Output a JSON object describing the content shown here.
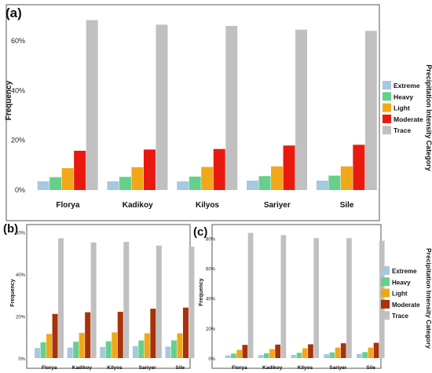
{
  "colors": {
    "Extreme": "#a6c8e0",
    "Heavy": "#66d08a",
    "Light": "#f0a818",
    "Moderate_a": "#e81a10",
    "Moderate_bc": "#a8320a",
    "Trace": "#c0c0c0"
  },
  "chart_data": [
    {
      "panel": "(a)",
      "type": "bar",
      "categories": [
        "Florya",
        "Kadikoy",
        "Kilyos",
        "Sariyer",
        "Sile"
      ],
      "ylabel": "Frequency",
      "ylim": [
        0,
        72
      ],
      "yticks": [
        "0%",
        "20%",
        "40%",
        "60%"
      ],
      "ytick_values": [
        0,
        20,
        40,
        60
      ],
      "legend_title": "Precipitation Intensity Category",
      "legend_position": "right",
      "series": [
        {
          "name": "Extreme",
          "values": [
            3.5,
            3.5,
            3.5,
            3.8,
            3.8
          ]
        },
        {
          "name": "Heavy",
          "values": [
            5.2,
            5.3,
            5.4,
            5.6,
            5.8
          ]
        },
        {
          "name": "Light",
          "values": [
            8.8,
            9.2,
            9.3,
            9.5,
            9.5
          ]
        },
        {
          "name": "Moderate",
          "values": [
            15.8,
            16.3,
            16.5,
            17.9,
            18.2
          ]
        },
        {
          "name": "Trace",
          "values": [
            68.3,
            66.5,
            66.0,
            64.5,
            64.0
          ]
        }
      ]
    },
    {
      "panel": "(b)",
      "type": "bar",
      "categories": [
        "Florya",
        "Kadikoy",
        "Kilyos",
        "Sariyer",
        "Sile"
      ],
      "ylabel": "Frequency",
      "ylim": [
        0,
        62
      ],
      "yticks": [
        "0%",
        "20%",
        "40%",
        "60%"
      ],
      "ytick_values": [
        0,
        20,
        40,
        60
      ],
      "series": [
        {
          "name": "Extreme",
          "values": [
            4.8,
            5.0,
            5.3,
            5.7,
            5.5
          ]
        },
        {
          "name": "Heavy",
          "values": [
            7.5,
            7.8,
            8.0,
            8.4,
            8.4
          ]
        },
        {
          "name": "Light",
          "values": [
            11.5,
            12.0,
            12.2,
            11.8,
            11.8
          ]
        },
        {
          "name": "Moderate",
          "values": [
            21.0,
            21.8,
            22.0,
            23.5,
            24.0
          ]
        },
        {
          "name": "Trace",
          "values": [
            57.0,
            55.0,
            55.3,
            53.5,
            53.0
          ]
        }
      ]
    },
    {
      "panel": "(c)",
      "type": "bar",
      "categories": [
        "Florya",
        "Kadikoy",
        "Kilyos",
        "Sariyer",
        "Sile"
      ],
      "ylabel": "Frequency",
      "ylim": [
        0,
        88
      ],
      "yticks": [
        "0%",
        "20%",
        "40%",
        "60%",
        "80%"
      ],
      "ytick_values": [
        0,
        20,
        40,
        60,
        80
      ],
      "legend_title": "Precipitation Intensity Category",
      "legend_position": "right",
      "series": [
        {
          "name": "Extreme",
          "values": [
            1.8,
            2.0,
            2.2,
            2.5,
            2.8
          ]
        },
        {
          "name": "Heavy",
          "values": [
            3.0,
            3.2,
            3.5,
            3.8,
            4.0
          ]
        },
        {
          "name": "Light",
          "values": [
            5.5,
            6.0,
            6.5,
            7.0,
            7.0
          ]
        },
        {
          "name": "Moderate",
          "values": [
            8.8,
            9.0,
            9.2,
            9.9,
            10.2
          ]
        },
        {
          "name": "Trace",
          "values": [
            83.5,
            82.0,
            80.0,
            80.0,
            78.3
          ]
        }
      ]
    }
  ]
}
